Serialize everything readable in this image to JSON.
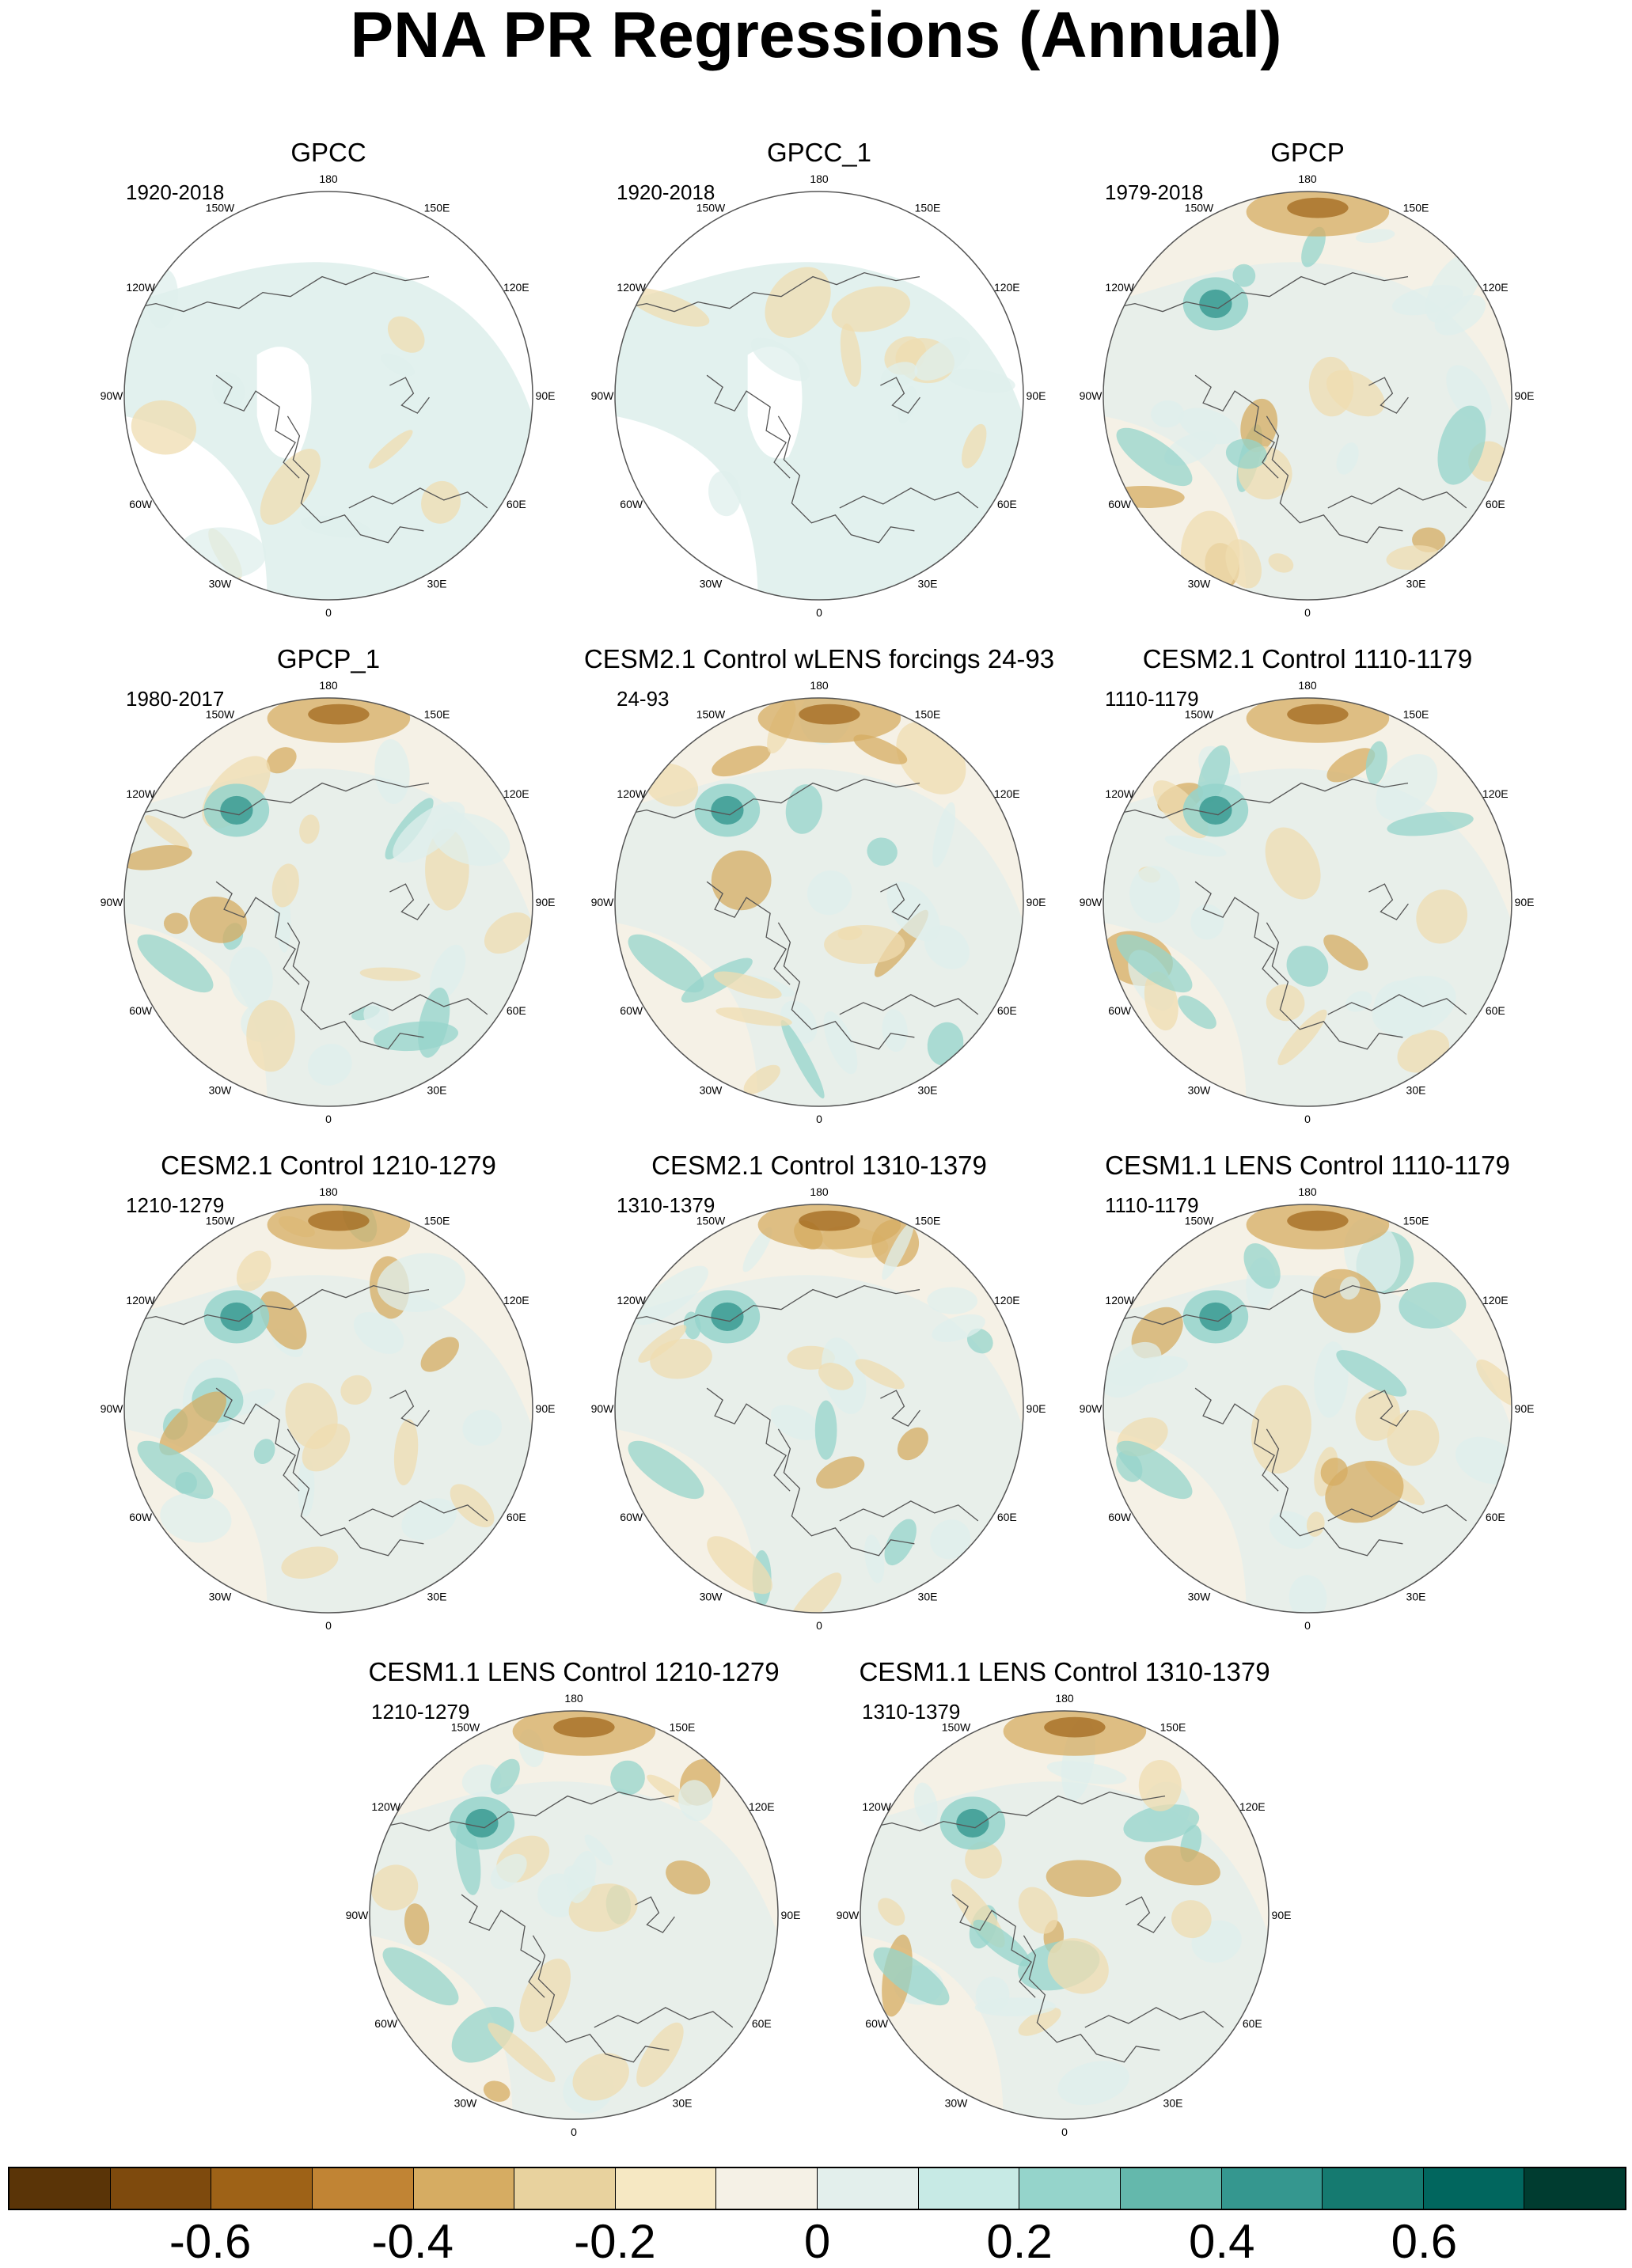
{
  "title": "PNA PR Regressions (Annual)",
  "longitude_labels": [
    "180",
    "150E",
    "120E",
    "90E",
    "60E",
    "30E",
    "0",
    "30W",
    "60W",
    "90W",
    "120W",
    "150W"
  ],
  "panels": [
    {
      "name": "GPCC",
      "period": "1920-2018",
      "coverage": "land-only"
    },
    {
      "name": "GPCC_1",
      "period": "1920-2018",
      "coverage": "land-only"
    },
    {
      "name": "GPCP",
      "period": "1979-2018",
      "coverage": "global"
    },
    {
      "name": "GPCP_1",
      "period": "1980-2017",
      "coverage": "global"
    },
    {
      "name": "CESM2.1 Control wLENS forcings 24-93",
      "period": "24-93",
      "coverage": "global"
    },
    {
      "name": "CESM2.1 Control 1110-1179",
      "period": "1110-1179",
      "coverage": "global"
    },
    {
      "name": "CESM2.1 Control 1210-1279",
      "period": "1210-1279",
      "coverage": "global"
    },
    {
      "name": "CESM2.1 Control 1310-1379",
      "period": "1310-1379",
      "coverage": "global"
    },
    {
      "name": "CESM1.1 LENS Control 1110-1179",
      "period": "1110-1179",
      "coverage": "global"
    },
    {
      "name": "CESM1.1 LENS Control 1210-1279",
      "period": "1210-1279",
      "coverage": "global"
    },
    {
      "name": "CESM1.1 LENS Control 1310-1379",
      "period": "1310-1379",
      "coverage": "global"
    }
  ],
  "colorbar": {
    "colors": [
      "#5a3407",
      "#7e4a0d",
      "#9e6217",
      "#c18434",
      "#d6ac62",
      "#e8d29e",
      "#f6e8c3",
      "#f5f1e6",
      "#e3efec",
      "#c7eae5",
      "#95d4cb",
      "#64b8ac",
      "#35978f",
      "#157a70",
      "#01665e",
      "#003c30"
    ],
    "tick_values": [
      -0.6,
      -0.4,
      -0.2,
      0,
      0.2,
      0.4,
      0.6
    ],
    "tick_labels": [
      "-0.6",
      "-0.4",
      "-0.2",
      "0",
      "0.2",
      "0.4",
      "0.6"
    ],
    "range": [
      -0.8,
      0.8
    ]
  },
  "palette": {
    "ocean_neutral": "#f5f1e6",
    "light_teal": "#dfefec",
    "teal": "#95d4cb",
    "dark_teal": "#35978f",
    "light_brown": "#efdcb0",
    "brown": "#d6ac62",
    "dark_brown": "#9e6217",
    "coastline": "#555555"
  }
}
